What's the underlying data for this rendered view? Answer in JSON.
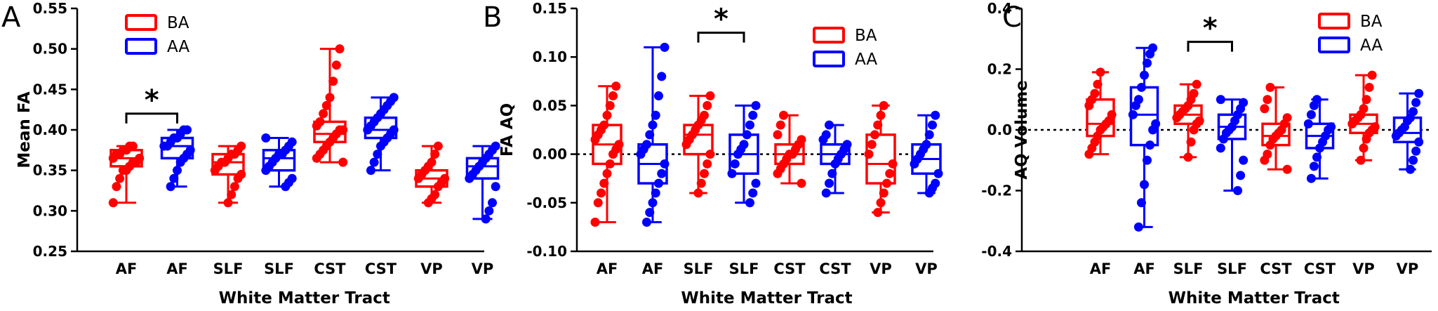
{
  "colors": {
    "BA": "#ff0000",
    "AA": "#0000ff",
    "axis": "#000000"
  },
  "legend": [
    {
      "key": "BA",
      "label": "BA"
    },
    {
      "key": "AA",
      "label": "AA"
    }
  ],
  "chart_data": [
    {
      "type": "box",
      "panel_label": "A",
      "title": "",
      "xlabel": "White Matter Tract",
      "ylabel": "Mean FA",
      "ylim": [
        0.25,
        0.55
      ],
      "yticks": [
        0.25,
        0.3,
        0.35,
        0.4,
        0.45,
        0.5,
        0.55
      ],
      "ytick_labels": [
        "0.25",
        "0.30",
        "0.35",
        "0.40",
        "0.45",
        "0.50",
        "0.55"
      ],
      "zero_line": false,
      "categories": [
        "AF",
        "AF",
        "SLF",
        "SLF",
        "CST",
        "CST",
        "VP",
        "VP"
      ],
      "legend_position": "top-left",
      "significance": [
        {
          "from": 0,
          "to": 1,
          "label": "*"
        }
      ],
      "boxes": [
        {
          "group": "BA",
          "min": 0.31,
          "q1": 0.355,
          "median": 0.365,
          "q3": 0.375,
          "max": 0.38,
          "points": [
            0.31,
            0.33,
            0.34,
            0.35,
            0.35,
            0.355,
            0.36,
            0.36,
            0.365,
            0.365,
            0.37,
            0.37,
            0.375,
            0.375,
            0.38,
            0.38
          ]
        },
        {
          "group": "AA",
          "min": 0.33,
          "q1": 0.365,
          "median": 0.38,
          "q3": 0.39,
          "max": 0.4,
          "points": [
            0.33,
            0.34,
            0.35,
            0.36,
            0.365,
            0.37,
            0.375,
            0.38,
            0.38,
            0.385,
            0.39,
            0.39,
            0.395,
            0.4,
            0.4
          ]
        },
        {
          "group": "BA",
          "min": 0.31,
          "q1": 0.345,
          "median": 0.36,
          "q3": 0.37,
          "max": 0.38,
          "points": [
            0.31,
            0.32,
            0.33,
            0.34,
            0.345,
            0.35,
            0.355,
            0.36,
            0.36,
            0.365,
            0.37,
            0.37,
            0.375,
            0.38
          ]
        },
        {
          "group": "AA",
          "min": 0.33,
          "q1": 0.35,
          "median": 0.365,
          "q3": 0.375,
          "max": 0.39,
          "points": [
            0.33,
            0.335,
            0.34,
            0.35,
            0.355,
            0.36,
            0.365,
            0.37,
            0.37,
            0.375,
            0.38,
            0.385,
            0.39
          ]
        },
        {
          "group": "BA",
          "min": 0.36,
          "q1": 0.385,
          "median": 0.395,
          "q3": 0.41,
          "max": 0.5,
          "points": [
            0.36,
            0.365,
            0.37,
            0.375,
            0.38,
            0.385,
            0.39,
            0.395,
            0.4,
            0.4,
            0.405,
            0.41,
            0.42,
            0.43,
            0.44,
            0.46,
            0.48,
            0.5
          ]
        },
        {
          "group": "AA",
          "min": 0.35,
          "q1": 0.39,
          "median": 0.4,
          "q3": 0.415,
          "max": 0.44,
          "points": [
            0.35,
            0.36,
            0.37,
            0.38,
            0.385,
            0.39,
            0.395,
            0.4,
            0.4,
            0.405,
            0.41,
            0.415,
            0.42,
            0.425,
            0.43,
            0.435,
            0.44
          ]
        },
        {
          "group": "BA",
          "min": 0.31,
          "q1": 0.33,
          "median": 0.34,
          "q3": 0.35,
          "max": 0.38,
          "points": [
            0.31,
            0.315,
            0.32,
            0.33,
            0.335,
            0.34,
            0.34,
            0.345,
            0.35,
            0.355,
            0.36,
            0.37,
            0.38
          ]
        },
        {
          "group": "AA",
          "min": 0.29,
          "q1": 0.34,
          "median": 0.355,
          "q3": 0.365,
          "max": 0.38,
          "points": [
            0.29,
            0.3,
            0.31,
            0.33,
            0.34,
            0.345,
            0.35,
            0.355,
            0.36,
            0.365,
            0.37,
            0.375,
            0.38
          ]
        }
      ]
    },
    {
      "type": "box",
      "panel_label": "B",
      "title": "",
      "xlabel": "White Matter Tract",
      "ylabel": "FA AQ",
      "ylim": [
        -0.1,
        0.15
      ],
      "yticks": [
        -0.1,
        -0.05,
        0.0,
        0.05,
        0.1,
        0.15
      ],
      "ytick_labels": [
        "-0.10",
        "-0.05",
        "0.00",
        "0.05",
        "0.10",
        "0.15"
      ],
      "zero_line": true,
      "categories": [
        "AF",
        "AF",
        "SLF",
        "SLF",
        "CST",
        "CST",
        "VP",
        "VP"
      ],
      "legend_position": "top-right",
      "significance": [
        {
          "from": 2,
          "to": 3,
          "label": "*"
        }
      ],
      "boxes": [
        {
          "group": "BA",
          "min": -0.07,
          "q1": -0.01,
          "median": 0.01,
          "q3": 0.03,
          "max": 0.07,
          "points": [
            -0.07,
            -0.05,
            -0.04,
            -0.03,
            -0.02,
            -0.01,
            0.0,
            0.005,
            0.01,
            0.015,
            0.02,
            0.025,
            0.03,
            0.04,
            0.05,
            0.06,
            0.07
          ]
        },
        {
          "group": "AA",
          "min": -0.07,
          "q1": -0.03,
          "median": -0.01,
          "q3": 0.01,
          "max": 0.11,
          "points": [
            -0.07,
            -0.06,
            -0.05,
            -0.04,
            -0.03,
            -0.02,
            -0.01,
            0.0,
            0.005,
            0.01,
            0.02,
            0.03,
            0.04,
            0.06,
            0.08,
            0.11
          ]
        },
        {
          "group": "BA",
          "min": -0.04,
          "q1": 0.0,
          "median": 0.02,
          "q3": 0.03,
          "max": 0.06,
          "points": [
            -0.04,
            -0.03,
            -0.02,
            -0.01,
            0.0,
            0.01,
            0.015,
            0.02,
            0.025,
            0.03,
            0.035,
            0.04,
            0.05,
            0.06
          ]
        },
        {
          "group": "AA",
          "min": -0.05,
          "q1": -0.02,
          "median": 0.0,
          "q3": 0.02,
          "max": 0.05,
          "points": [
            -0.05,
            -0.04,
            -0.03,
            -0.02,
            -0.01,
            0.0,
            0.005,
            0.01,
            0.02,
            0.03,
            0.04,
            0.05
          ]
        },
        {
          "group": "BA",
          "min": -0.03,
          "q1": -0.01,
          "median": 0.0,
          "q3": 0.01,
          "max": 0.04,
          "points": [
            -0.03,
            -0.02,
            -0.015,
            -0.01,
            -0.005,
            0.0,
            0.0,
            0.005,
            0.01,
            0.015,
            0.02,
            0.03,
            0.04
          ]
        },
        {
          "group": "AA",
          "min": -0.04,
          "q1": -0.01,
          "median": 0.0,
          "q3": 0.01,
          "max": 0.03,
          "points": [
            -0.04,
            -0.03,
            -0.02,
            -0.01,
            -0.005,
            0.0,
            0.005,
            0.01,
            0.015,
            0.02,
            0.03
          ]
        },
        {
          "group": "BA",
          "min": -0.06,
          "q1": -0.03,
          "median": -0.01,
          "q3": 0.02,
          "max": 0.05,
          "points": [
            -0.06,
            -0.05,
            -0.04,
            -0.03,
            -0.02,
            -0.01,
            0.0,
            0.01,
            0.02,
            0.03,
            0.04,
            0.05
          ]
        },
        {
          "group": "AA",
          "min": -0.04,
          "q1": -0.02,
          "median": -0.005,
          "q3": 0.01,
          "max": 0.04,
          "points": [
            -0.04,
            -0.035,
            -0.03,
            -0.02,
            -0.01,
            -0.005,
            0.0,
            0.005,
            0.01,
            0.02,
            0.03,
            0.04
          ]
        }
      ]
    },
    {
      "type": "box",
      "panel_label": "C",
      "title": "",
      "xlabel": "White Matter Tract",
      "ylabel": "AQ Volume",
      "ylim": [
        -0.4,
        0.4
      ],
      "yticks": [
        -0.4,
        -0.2,
        0.0,
        0.2,
        0.4
      ],
      "ytick_labels": [
        "-0.4",
        "-0.2",
        "0.0",
        "0.2",
        "0.4"
      ],
      "zero_line": true,
      "categories": [
        "AF",
        "AF",
        "SLF",
        "SLF",
        "CST",
        "CST",
        "VP",
        "VP"
      ],
      "legend_position": "top-right",
      "significance": [
        {
          "from": 2,
          "to": 3,
          "label": "*"
        }
      ],
      "boxes": [
        {
          "group": "BA",
          "min": -0.08,
          "q1": -0.02,
          "median": 0.02,
          "q3": 0.1,
          "max": 0.19,
          "points": [
            -0.08,
            -0.06,
            -0.04,
            -0.02,
            0.0,
            0.01,
            0.02,
            0.03,
            0.05,
            0.08,
            0.1,
            0.12,
            0.15,
            0.19
          ]
        },
        {
          "group": "AA",
          "min": -0.32,
          "q1": -0.05,
          "median": 0.05,
          "q3": 0.14,
          "max": 0.27,
          "points": [
            -0.32,
            -0.24,
            -0.18,
            -0.1,
            -0.05,
            0.0,
            0.02,
            0.05,
            0.08,
            0.1,
            0.14,
            0.18,
            0.22,
            0.25,
            0.27
          ]
        },
        {
          "group": "BA",
          "min": -0.09,
          "q1": 0.02,
          "median": 0.05,
          "q3": 0.08,
          "max": 0.15,
          "points": [
            -0.09,
            -0.04,
            0.0,
            0.02,
            0.03,
            0.04,
            0.05,
            0.06,
            0.07,
            0.08,
            0.1,
            0.12,
            0.15
          ]
        },
        {
          "group": "AA",
          "min": -0.2,
          "q1": -0.03,
          "median": 0.01,
          "q3": 0.05,
          "max": 0.1,
          "points": [
            -0.2,
            -0.15,
            -0.1,
            -0.06,
            -0.03,
            -0.01,
            0.0,
            0.01,
            0.03,
            0.05,
            0.07,
            0.09,
            0.1
          ]
        },
        {
          "group": "BA",
          "min": -0.13,
          "q1": -0.05,
          "median": -0.02,
          "q3": 0.02,
          "max": 0.14,
          "points": [
            -0.13,
            -0.1,
            -0.08,
            -0.05,
            -0.03,
            -0.02,
            -0.01,
            0.0,
            0.02,
            0.04,
            0.07,
            0.1,
            0.14
          ]
        },
        {
          "group": "AA",
          "min": -0.16,
          "q1": -0.06,
          "median": -0.02,
          "q3": 0.02,
          "max": 0.1,
          "points": [
            -0.16,
            -0.12,
            -0.09,
            -0.06,
            -0.04,
            -0.02,
            0.0,
            0.01,
            0.02,
            0.05,
            0.08,
            0.1
          ]
        },
        {
          "group": "BA",
          "min": -0.1,
          "q1": -0.01,
          "median": 0.02,
          "q3": 0.05,
          "max": 0.18,
          "points": [
            -0.1,
            -0.06,
            -0.03,
            -0.01,
            0.0,
            0.01,
            0.02,
            0.03,
            0.04,
            0.05,
            0.07,
            0.1,
            0.14,
            0.18
          ]
        },
        {
          "group": "AA",
          "min": -0.13,
          "q1": -0.04,
          "median": -0.01,
          "q3": 0.04,
          "max": 0.12,
          "points": [
            -0.13,
            -0.1,
            -0.07,
            -0.04,
            -0.02,
            -0.01,
            0.0,
            0.01,
            0.03,
            0.04,
            0.06,
            0.09,
            0.12
          ]
        }
      ]
    }
  ]
}
